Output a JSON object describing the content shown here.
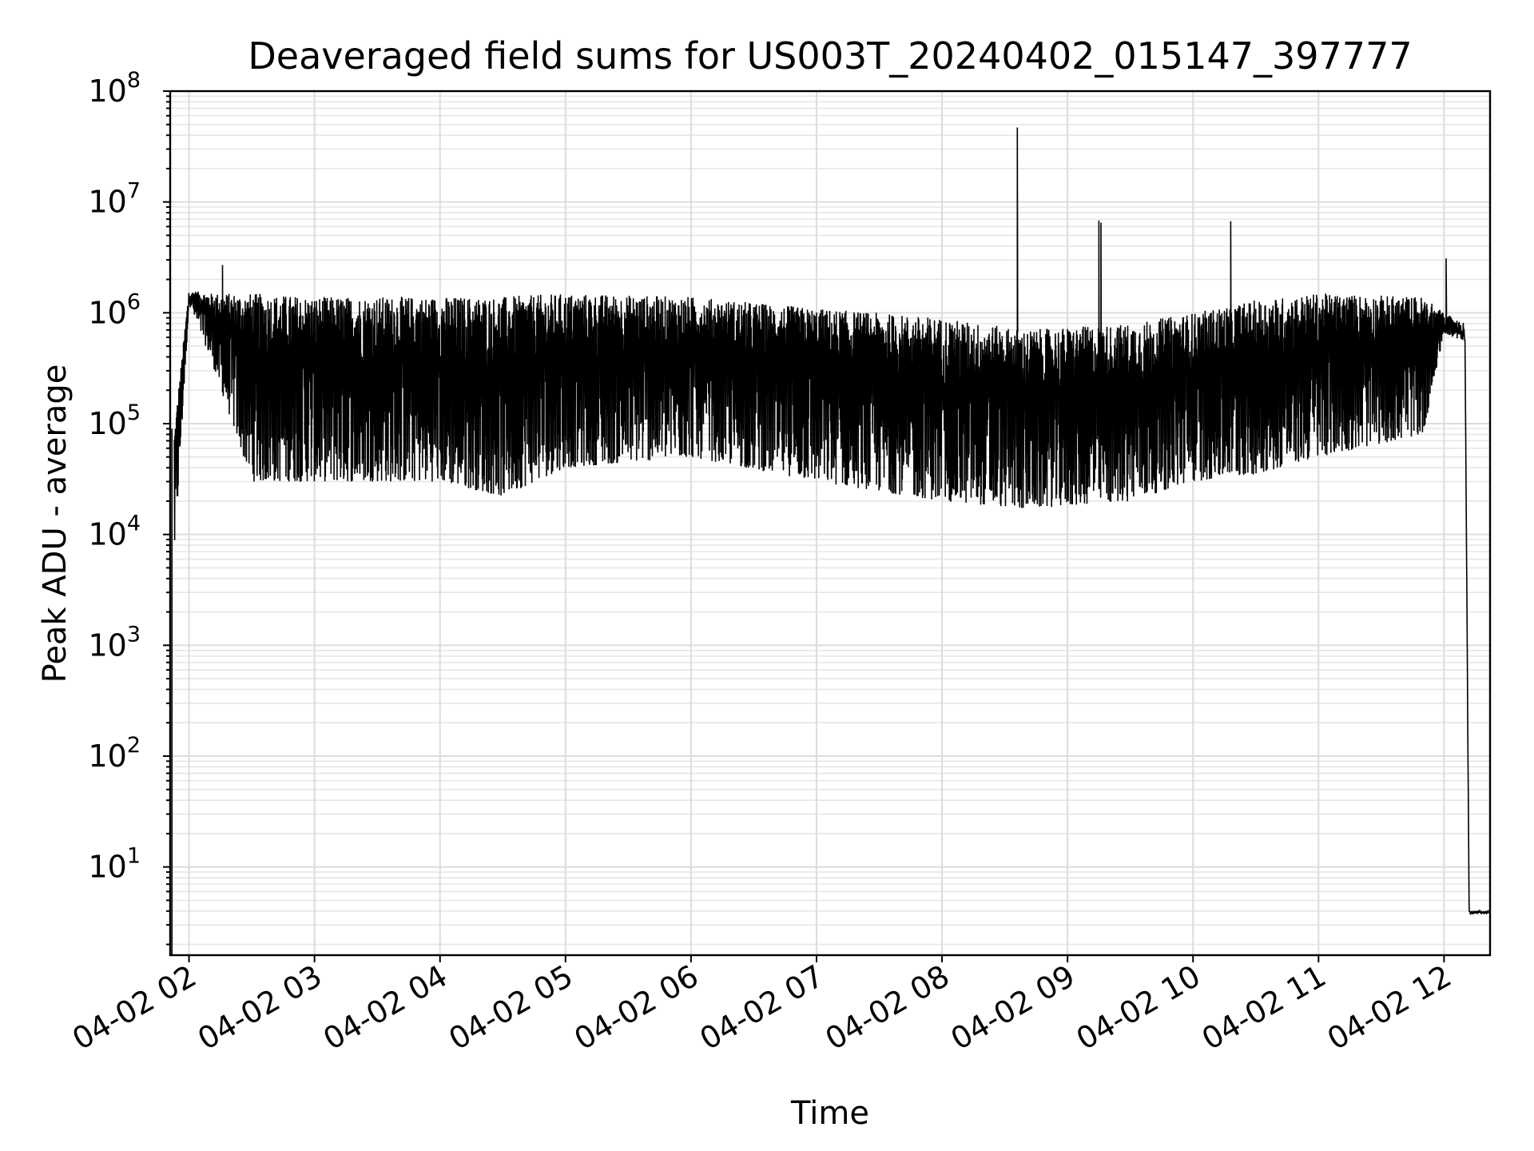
{
  "chart_data": {
    "type": "line",
    "title": "Deaveraged field sums for US003T_20240402_015147_397777",
    "xlabel": "Time",
    "ylabel": "Peak ADU - average",
    "yscale": "log",
    "ylim": [
      1.6,
      100000000
    ],
    "xlim": [
      "2024-04-02 01:51",
      "2024-04-02 12:22"
    ],
    "grid": "major and minor",
    "x_ticks": [
      "04-02 02",
      "04-02 03",
      "04-02 04",
      "04-02 05",
      "04-02 06",
      "04-02 07",
      "04-02 08",
      "04-02 09",
      "04-02 10",
      "04-02 11",
      "04-02 12"
    ],
    "y_ticks": [
      {
        "value": 10,
        "base": "10",
        "exp": "1"
      },
      {
        "value": 100,
        "base": "10",
        "exp": "2"
      },
      {
        "value": 1000,
        "base": "10",
        "exp": "3"
      },
      {
        "value": 10000,
        "base": "10",
        "exp": "4"
      },
      {
        "value": 100000,
        "base": "10",
        "exp": "5"
      },
      {
        "value": 1000000,
        "base": "10",
        "exp": "6"
      },
      {
        "value": 10000000,
        "base": "10",
        "exp": "7"
      },
      {
        "value": 100000000,
        "base": "10",
        "exp": "8"
      }
    ],
    "series": [
      {
        "color": "#000000",
        "envelope_points": [
          {
            "t": "2024-04-02 01:53",
            "high": 90000,
            "low": 6000
          },
          {
            "t": "2024-04-02 02:00",
            "high": 1600000,
            "low": 1200000
          },
          {
            "t": "2024-04-02 02:10",
            "high": 1500000,
            "low": 400000
          },
          {
            "t": "2024-04-02 02:30",
            "high": 1500000,
            "low": 30000
          },
          {
            "t": "2024-04-02 03:00",
            "high": 1400000,
            "low": 30000
          },
          {
            "t": "2024-04-02 04:00",
            "high": 1400000,
            "low": 30000
          },
          {
            "t": "2024-04-02 04:30",
            "high": 1400000,
            "low": 22000
          },
          {
            "t": "2024-04-02 05:00",
            "high": 1500000,
            "low": 40000
          },
          {
            "t": "2024-04-02 06:00",
            "high": 1400000,
            "low": 50000
          },
          {
            "t": "2024-04-02 07:00",
            "high": 1100000,
            "low": 30000
          },
          {
            "t": "2024-04-02 08:00",
            "high": 900000,
            "low": 20000
          },
          {
            "t": "2024-04-02 08:40",
            "high": 700000,
            "low": 17000
          },
          {
            "t": "2024-04-02 09:30",
            "high": 800000,
            "low": 20000
          },
          {
            "t": "2024-04-02 10:00",
            "high": 1000000,
            "low": 30000
          },
          {
            "t": "2024-04-02 10:30",
            "high": 1300000,
            "low": 35000
          },
          {
            "t": "2024-04-02 11:00",
            "high": 1500000,
            "low": 50000
          },
          {
            "t": "2024-04-02 11:50",
            "high": 1400000,
            "low": 80000
          },
          {
            "t": "2024-04-02 12:00",
            "high": 1000000,
            "low": 650000
          },
          {
            "t": "2024-04-02 12:10",
            "high": 800000,
            "low": 550000
          },
          {
            "t": "2024-04-02 12:12",
            "high": 4,
            "low": 3.8
          },
          {
            "t": "2024-04-02 12:22",
            "high": 4,
            "low": 3.8
          }
        ],
        "spikes": [
          {
            "t": "2024-04-02 02:16",
            "value": 2700000
          },
          {
            "t": "2024-04-02 08:36",
            "value": 47000000
          },
          {
            "t": "2024-04-02 09:15",
            "value": 6800000
          },
          {
            "t": "2024-04-02 09:16",
            "value": 6500000
          },
          {
            "t": "2024-04-02 10:18",
            "value": 6700000
          },
          {
            "t": "2024-04-02 12:01",
            "value": 3100000
          }
        ]
      }
    ]
  }
}
